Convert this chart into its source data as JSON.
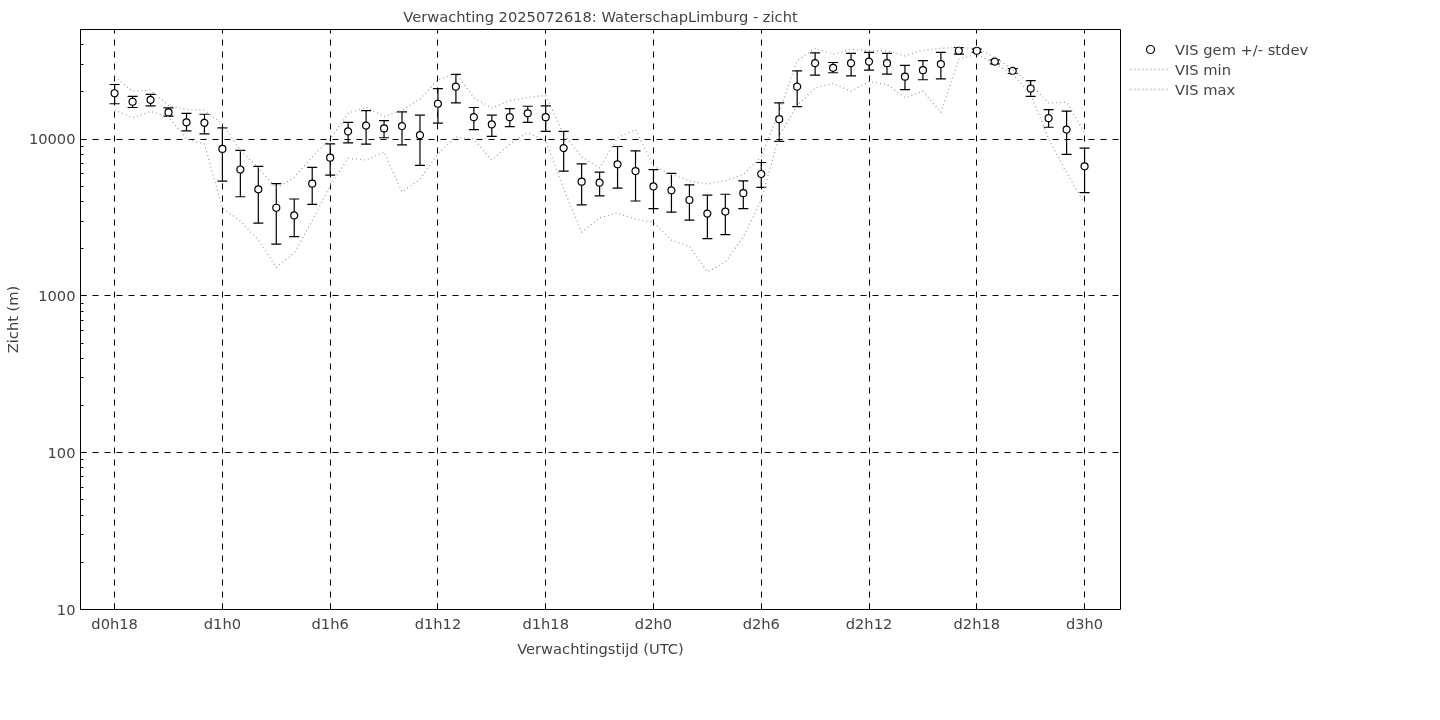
{
  "chart_data": {
    "type": "scatter",
    "title": "Verwachting 2025072618: WaterschapLimburg - zicht",
    "xlabel": "Verwachtingstijd (UTC)",
    "ylabel": "Zicht (m)",
    "categories": [
      "d0h18",
      null,
      null,
      null,
      null,
      null,
      "d1h0",
      null,
      null,
      null,
      null,
      null,
      "d1h6",
      null,
      null,
      null,
      null,
      null,
      "d1h12",
      null,
      null,
      null,
      null,
      null,
      "d1h18",
      null,
      null,
      null,
      null,
      null,
      "d2h0",
      null,
      null,
      null,
      null,
      null,
      "d2h6",
      null,
      null,
      null,
      null,
      null,
      "d2h12",
      null,
      null,
      null,
      null,
      null,
      "d2h18",
      null,
      null,
      null,
      null,
      null,
      "d3h0"
    ],
    "series": [
      {
        "name": "VIS gem +/- stdev",
        "marker": "circle",
        "color": "#000000",
        "values": [
          19600,
          17300,
          17800,
          14800,
          12800,
          12700,
          8650,
          6400,
          4780,
          3650,
          3260,
          5200,
          7610,
          11200,
          12200,
          11700,
          12100,
          10600,
          16800,
          21600,
          13800,
          12400,
          13800,
          14600,
          13800,
          8770,
          5350,
          5270,
          6900,
          6250,
          4990,
          4710,
          4090,
          3350,
          3450,
          4520,
          5990,
          13400,
          21600,
          30500,
          28500,
          30500,
          31200,
          30500,
          25000,
          27500,
          30100,
          36600,
          36600,
          31200,
          27200,
          21000,
          13600,
          11500,
          6700
        ],
        "errors": [
          [
            16800,
            22300
          ],
          [
            15900,
            18700
          ],
          [
            16300,
            19300
          ],
          [
            14000,
            15800
          ],
          [
            11300,
            14600
          ],
          [
            10800,
            14400
          ],
          [
            5400,
            11800
          ],
          [
            4290,
            8480
          ],
          [
            2910,
            6700
          ],
          [
            2140,
            5200
          ],
          [
            2390,
            4150
          ],
          [
            3830,
            6610
          ],
          [
            5900,
            9320
          ],
          [
            9450,
            12800
          ],
          [
            9300,
            15200
          ],
          [
            10200,
            13100
          ],
          [
            9190,
            14900
          ],
          [
            6800,
            14200
          ],
          [
            12660,
            21000
          ],
          [
            17000,
            25900
          ],
          [
            11500,
            15900
          ],
          [
            10400,
            14200
          ],
          [
            12000,
            15650
          ],
          [
            12800,
            16200
          ],
          [
            11200,
            16300
          ],
          [
            6250,
            11200
          ],
          [
            3810,
            6950
          ],
          [
            4340,
            6160
          ],
          [
            4870,
            8970
          ],
          [
            4030,
            8400
          ],
          [
            3600,
            6390
          ],
          [
            3420,
            6040
          ],
          [
            3040,
            5100
          ],
          [
            2320,
            4390
          ],
          [
            2460,
            4450
          ],
          [
            3600,
            5420
          ],
          [
            4920,
            7090
          ],
          [
            9680,
            17000
          ],
          [
            16100,
            27200
          ],
          [
            25600,
            35500
          ],
          [
            26500,
            30800
          ],
          [
            25300,
            35200
          ],
          [
            27500,
            35700
          ],
          [
            26000,
            35200
          ],
          [
            20700,
            29500
          ],
          [
            23900,
            31700
          ],
          [
            24200,
            35700
          ],
          [
            34800,
            38400
          ],
          [
            35700,
            37500
          ],
          [
            30200,
            32000
          ],
          [
            26200,
            28200
          ],
          [
            18700,
            23600
          ],
          [
            11900,
            15400
          ],
          [
            7980,
            15100
          ],
          [
            4560,
            8770
          ]
        ]
      },
      {
        "name": "VIS min",
        "type": "line",
        "line_style": "dotted",
        "color": "#a0a0a0",
        "values": [
          15300,
          13700,
          15000,
          13900,
          10000,
          9300,
          3630,
          3010,
          2270,
          1520,
          1880,
          3010,
          5050,
          7540,
          7360,
          8290,
          4600,
          5550,
          8090,
          10300,
          10000,
          7360,
          9320,
          11000,
          9760,
          4820,
          2550,
          3150,
          3380,
          3080,
          2940,
          2270,
          2070,
          1420,
          1640,
          2380,
          4090,
          10500,
          16400,
          21200,
          22600,
          20200,
          23300,
          22300,
          18400,
          20200,
          14800,
          32400,
          34800,
          30200,
          26000,
          19300,
          10000,
          6100,
          3900
        ]
      },
      {
        "name": "VIS max",
        "type": "line",
        "line_style": "dotted",
        "color": "#a0a0a0",
        "values": [
          25000,
          20200,
          20500,
          16400,
          15400,
          15300,
          12500,
          8480,
          6550,
          4870,
          5690,
          7720,
          10000,
          14600,
          16000,
          13900,
          15300,
          18000,
          23900,
          26200,
          18400,
          15800,
          17600,
          18400,
          19000,
          10700,
          7720,
          6550,
          10200,
          11500,
          6700,
          5950,
          5420,
          5170,
          5420,
          5950,
          7720,
          14900,
          31700,
          37900,
          34800,
          37300,
          36600,
          36600,
          34000,
          36800,
          37900,
          38400,
          37900,
          33300,
          27800,
          22300,
          17000,
          17200,
          11000
        ]
      }
    ],
    "ylim": [
      10,
      50000
    ],
    "yticks": [
      10,
      100,
      1000,
      10000
    ],
    "log": true,
    "grid": true,
    "legend": "top right"
  }
}
